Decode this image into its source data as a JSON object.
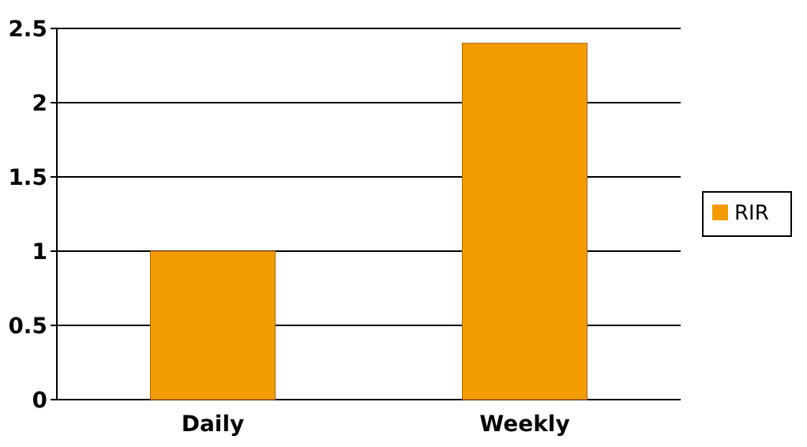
{
  "chart_data": {
    "type": "bar",
    "categories": [
      "Daily",
      "Weekly"
    ],
    "series": [
      {
        "name": "RIR",
        "color": "#f39c00",
        "values": [
          1,
          2.4
        ]
      }
    ],
    "ylim": [
      0,
      2.5
    ],
    "yticks": [
      0,
      0.5,
      1,
      1.5,
      2,
      2.5
    ],
    "grid": "y",
    "legend": "right"
  }
}
